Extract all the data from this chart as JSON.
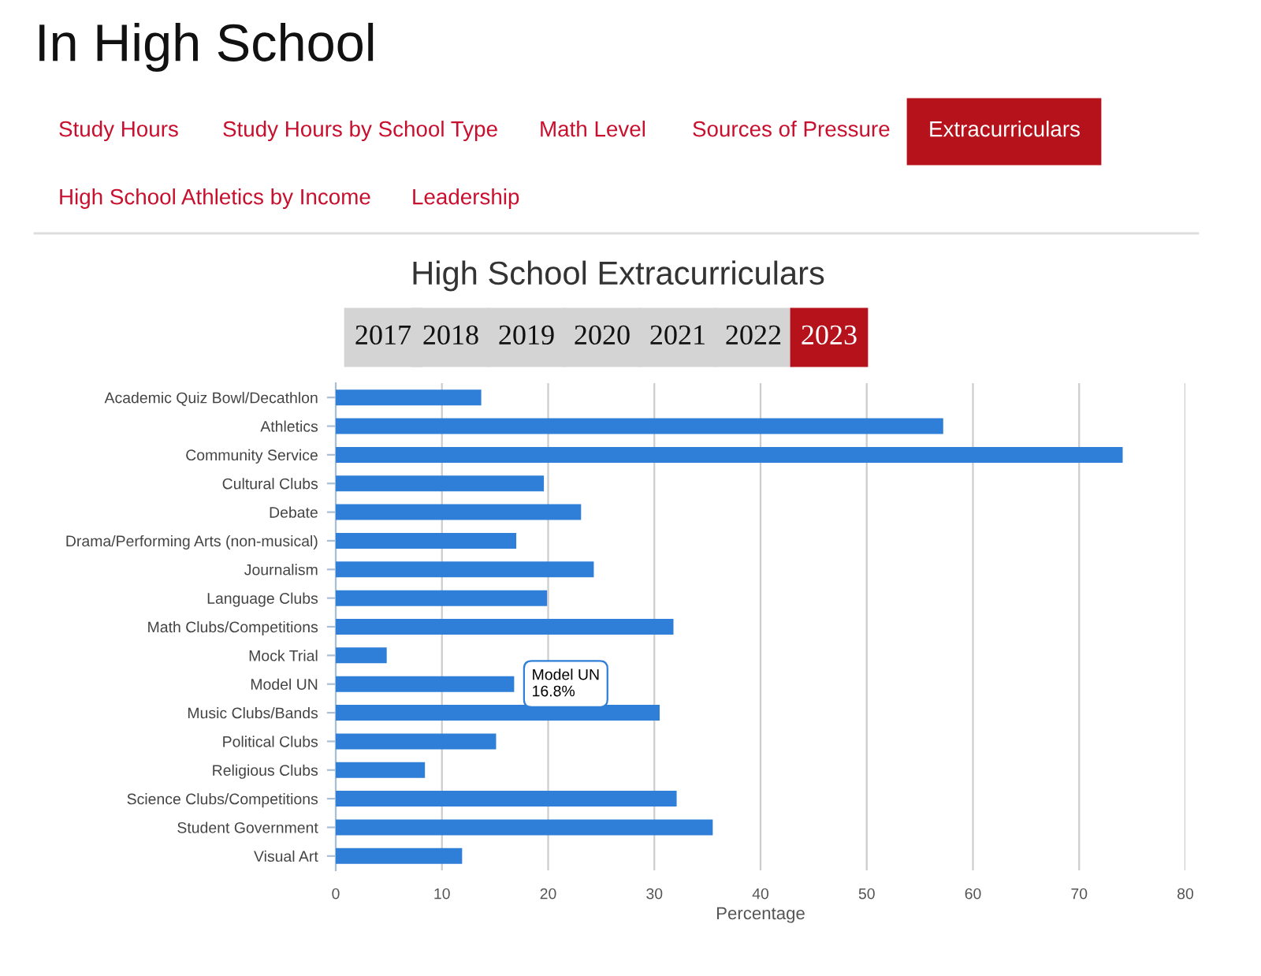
{
  "chart_data": {
    "type": "bar",
    "orientation": "horizontal",
    "title": "High School Extracurriculars",
    "xlabel": "Percentage",
    "categories": [
      "Academic Quiz Bowl/Decathlon",
      "Athletics",
      "Community Service",
      "Cultural Clubs",
      "Debate",
      "Drama/Performing Arts (non-musical)",
      "Journalism",
      "Language Clubs",
      "Math Clubs/Competitions",
      "Mock Trial",
      "Model UN",
      "Music Clubs/Bands",
      "Political Clubs",
      "Religious Clubs",
      "Science Clubs/Competitions",
      "Student Government",
      "Visual Art"
    ],
    "values": [
      13.7,
      57.2,
      74.1,
      19.6,
      23.1,
      17.0,
      24.3,
      19.9,
      31.8,
      4.8,
      16.8,
      30.5,
      15.1,
      8.4,
      32.1,
      35.5,
      11.9
    ],
    "color": "#2f7ed8",
    "xlim": [
      0,
      80
    ],
    "xticks": [
      0,
      10,
      20,
      30,
      40,
      50,
      60,
      70,
      80
    ],
    "grid": "x",
    "legend": false,
    "annotations": [
      "In High School",
      "Study Hours",
      "Study Hours by School Type",
      "Math Level",
      "Sources of Pressure",
      "Extracurriculars",
      "High School Athletics by Income",
      "Leadership",
      "2017",
      "2018",
      "2019",
      "2020",
      "2021",
      "2022",
      "2023",
      {
        "text": "Model UN\n16.8%",
        "x": 16.8,
        "y": "Model UN"
      }
    ]
  }
}
